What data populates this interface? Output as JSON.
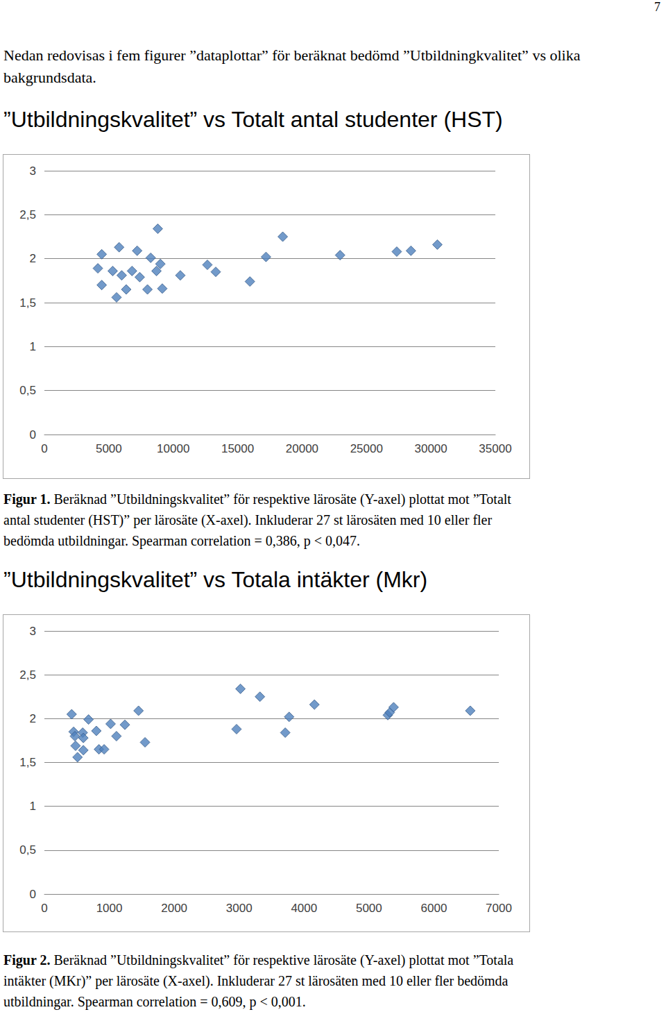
{
  "page_number": "7",
  "intro": "Nedan redovisas i fem figurer ”dataplottar” för beräknat bedömd ”Utbildningkvalitet” vs olika bakgrundsdata.",
  "chart_data": [
    {
      "type": "scatter",
      "title": "”Utbildningskvalitet” vs Totalt antal studenter (HST)",
      "caption": {
        "label": "Figur 1.",
        "text": "Beräknad ”Utbildningskvalitet” för respektive lärosäte (Y-axel) plottat mot ”Totalt antal studenter (HST)” per lärosäte (X-axel). Inkluderar 27 st lärosäten med 10 eller fler bedömda utbildningar. Spearman correlation = 0,386, p < 0,047."
      },
      "x": [
        4150,
        4450,
        4450,
        5300,
        5800,
        5600,
        6000,
        6350,
        6800,
        7200,
        7400,
        8000,
        8250,
        8800,
        8700,
        9000,
        9150,
        10550,
        12650,
        13300,
        15950,
        17200,
        18500,
        22950,
        27350,
        28450,
        30500
      ],
      "values": [
        1.89,
        2.05,
        1.7,
        1.86,
        2.13,
        1.56,
        1.81,
        1.65,
        1.86,
        2.09,
        1.79,
        1.65,
        2.01,
        2.34,
        1.86,
        1.94,
        1.66,
        1.81,
        1.93,
        1.85,
        1.74,
        2.02,
        2.25,
        2.04,
        2.08,
        2.09,
        2.16
      ],
      "color": "#4f81bd",
      "marker": "diamond",
      "xlim": [
        0,
        35000
      ],
      "xticks": [
        0,
        5000,
        10000,
        15000,
        20000,
        25000,
        30000,
        35000
      ],
      "ylim": [
        0,
        3
      ],
      "yticks": [
        0,
        {
          "value": 0.5,
          "label": "0,5"
        },
        1,
        {
          "value": 1.5,
          "label": "1,5"
        },
        2,
        {
          "value": 2.5,
          "label": "2,5"
        },
        3
      ],
      "grid": true
    },
    {
      "type": "scatter",
      "title": "”Utbildningskvalitet” vs Totala intäkter (Mkr)",
      "caption": {
        "label": "Figur 2.",
        "text": "Beräknad ”Utbildningskvalitet” för respektive lärosäte (Y-axel) plottat mot ”Totala intäkter (MKr)” per lärosäte (X-axel). Inkluderar 27 st lärosäten med 10 eller fler bedömda utbildningar. Spearman correlation = 0,609, p < 0,001."
      },
      "x": [
        420,
        450,
        470,
        480,
        510,
        590,
        600,
        600,
        680,
        800,
        840,
        920,
        1020,
        1110,
        1240,
        1450,
        1550,
        2960,
        3020,
        3320,
        3710,
        3770,
        4160,
        5290,
        5320,
        5380,
        6560
      ],
      "values": [
        2.05,
        1.85,
        1.8,
        1.69,
        1.56,
        1.84,
        1.78,
        1.64,
        1.99,
        1.86,
        1.65,
        1.65,
        1.94,
        1.8,
        1.93,
        2.09,
        1.73,
        1.88,
        2.34,
        2.25,
        1.84,
        2.02,
        2.16,
        2.04,
        2.07,
        2.13,
        2.09
      ],
      "color": "#4f81bd",
      "marker": "diamond",
      "xlim": [
        0,
        7000
      ],
      "xticks": [
        0,
        1000,
        2000,
        3000,
        4000,
        5000,
        6000,
        7000
      ],
      "ylim": [
        0,
        3
      ],
      "yticks": [
        0,
        {
          "value": 0.5,
          "label": "0,5"
        },
        1,
        {
          "value": 1.5,
          "label": "1,5"
        },
        2,
        {
          "value": 2.5,
          "label": "2,5"
        },
        3
      ],
      "grid": true
    }
  ]
}
